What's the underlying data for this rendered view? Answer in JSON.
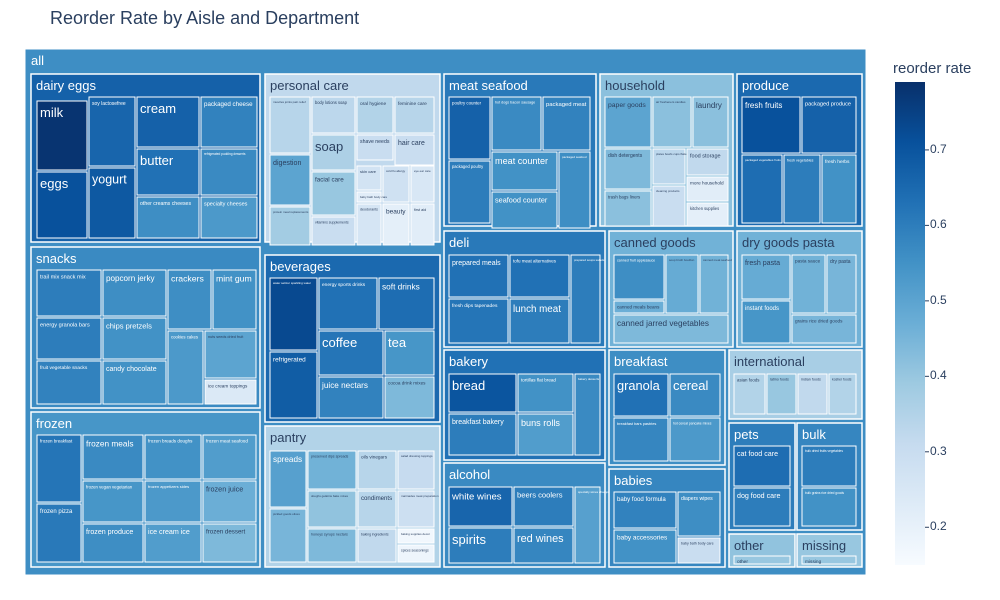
{
  "chart_data": {
    "type": "treemap",
    "title": "Reorder Rate by Aisle and Department",
    "root_label": "all",
    "root_rate": 0.56,
    "colorbar": {
      "title": "reorder rate",
      "range": [
        0.15,
        0.79
      ],
      "ticks": [
        0.2,
        0.3,
        0.4,
        0.5,
        0.6,
        0.7
      ],
      "colorscale": [
        "#f7fbff",
        "#deebf7",
        "#c6dbef",
        "#9ecae1",
        "#6baed6",
        "#4292c6",
        "#2171b5",
        "#08519c",
        "#08306b"
      ]
    },
    "departments": [
      {
        "name": "dairy eggs",
        "rate": 0.67,
        "aisles": [
          {
            "name": "milk",
            "rate": 0.78
          },
          {
            "name": "eggs",
            "rate": 0.71
          },
          {
            "name": "soy lactosefree",
            "rate": 0.66
          },
          {
            "name": "yogurt",
            "rate": 0.69
          },
          {
            "name": "cream",
            "rate": 0.67
          },
          {
            "name": "butter",
            "rate": 0.63
          },
          {
            "name": "packaged cheese",
            "rate": 0.59
          },
          {
            "name": "refrigerated pudding desserts",
            "rate": 0.57
          },
          {
            "name": "other creams cheeses",
            "rate": 0.56
          },
          {
            "name": "specialty cheeses",
            "rate": 0.53
          }
        ]
      },
      {
        "name": "personal care",
        "rate": 0.32,
        "aisles": [
          {
            "name": "facial care",
            "rate": 0.4
          },
          {
            "name": "digestion",
            "rate": 0.5
          },
          {
            "name": "body lotions soap",
            "rate": 0.33
          },
          {
            "name": "oral hygiene",
            "rate": 0.35
          },
          {
            "name": "feminine care",
            "rate": 0.34
          },
          {
            "name": "soap",
            "rate": 0.36
          },
          {
            "name": "shave needs",
            "rate": 0.3
          },
          {
            "name": "hair care",
            "rate": 0.3
          },
          {
            "name": "vitamins supplements",
            "rate": 0.3
          },
          {
            "name": "skin care",
            "rate": 0.27
          },
          {
            "name": "deodorants",
            "rate": 0.26
          },
          {
            "name": "beauty",
            "rate": 0.21
          },
          {
            "name": "first aid",
            "rate": 0.22
          },
          {
            "name": "cold flu allergy",
            "rate": 0.28
          },
          {
            "name": "eye ear care",
            "rate": 0.25
          },
          {
            "name": "muscles joints pain relief",
            "rate": 0.34
          },
          {
            "name": "protein meal replacements",
            "rate": 0.38
          },
          {
            "name": "baby bath body care",
            "rate": 0.22
          }
        ]
      },
      {
        "name": "meat seafood",
        "rate": 0.61,
        "aisles": [
          {
            "name": "poultry counter",
            "rate": 0.67
          },
          {
            "name": "hot dogs bacon sausage",
            "rate": 0.57
          },
          {
            "name": "packaged meat",
            "rate": 0.59
          },
          {
            "name": "meat counter",
            "rate": 0.55
          },
          {
            "name": "seafood counter",
            "rate": 0.55
          },
          {
            "name": "packaged seafood",
            "rate": 0.56
          },
          {
            "name": "packaged poultry",
            "rate": 0.6
          }
        ]
      },
      {
        "name": "household",
        "rate": 0.42,
        "aisles": [
          {
            "name": "paper goods",
            "rate": 0.5
          },
          {
            "name": "air fresheners candles",
            "rate": 0.42
          },
          {
            "name": "laundry",
            "rate": 0.42
          },
          {
            "name": "dish detergents",
            "rate": 0.44
          },
          {
            "name": "plates bowls cups flatware",
            "rate": 0.33
          },
          {
            "name": "food storage",
            "rate": 0.32
          },
          {
            "name": "trash bags liners",
            "rate": 0.42
          },
          {
            "name": "cleaning products",
            "rate": 0.3
          },
          {
            "name": "more household",
            "rate": 0.22
          },
          {
            "name": "kitchen supplies",
            "rate": 0.21
          }
        ]
      },
      {
        "name": "produce",
        "rate": 0.65,
        "aisles": [
          {
            "name": "fresh fruits",
            "rate": 0.71
          },
          {
            "name": "packaged produce",
            "rate": 0.67
          },
          {
            "name": "packaged vegetables fruits",
            "rate": 0.64
          },
          {
            "name": "fresh vegetables",
            "rate": 0.6
          },
          {
            "name": "fresh herbs",
            "rate": 0.55
          }
        ]
      },
      {
        "name": "snacks",
        "rate": 0.57,
        "aisles": [
          {
            "name": "trail mix snack mix",
            "rate": 0.6
          },
          {
            "name": "popcorn jerky",
            "rate": 0.56
          },
          {
            "name": "crackers",
            "rate": 0.56
          },
          {
            "name": "mint gum",
            "rate": 0.55
          },
          {
            "name": "energy granola bars",
            "rate": 0.6
          },
          {
            "name": "chips pretzels",
            "rate": 0.55
          },
          {
            "name": "cookies cakes",
            "rate": 0.53
          },
          {
            "name": "nuts seeds dried fruit",
            "rate": 0.5
          },
          {
            "name": "fruit vegetable snacks",
            "rate": 0.59
          },
          {
            "name": "candy chocolate",
            "rate": 0.55
          },
          {
            "name": "ice cream toppings",
            "rate": 0.24
          }
        ]
      },
      {
        "name": "beverages",
        "rate": 0.65,
        "aisles": [
          {
            "name": "water seltzer sparkling water",
            "rate": 0.73
          },
          {
            "name": "energy sports drinks",
            "rate": 0.63
          },
          {
            "name": "soft drinks",
            "rate": 0.64
          },
          {
            "name": "refrigerated",
            "rate": 0.68
          },
          {
            "name": "coffee",
            "rate": 0.62
          },
          {
            "name": "tea",
            "rate": 0.54
          },
          {
            "name": "juice nectars",
            "rate": 0.59
          },
          {
            "name": "cocoa drink mixes",
            "rate": 0.44
          }
        ]
      },
      {
        "name": "deli",
        "rate": 0.61,
        "aisles": [
          {
            "name": "prepared meals",
            "rate": 0.63
          },
          {
            "name": "tofu meat alternatives",
            "rate": 0.63
          },
          {
            "name": "prepared soups salads",
            "rate": 0.6
          },
          {
            "name": "fresh dips tapenades",
            "rate": 0.62
          },
          {
            "name": "lunch meat",
            "rate": 0.6
          }
        ]
      },
      {
        "name": "canned goods",
        "rate": 0.46,
        "aisles": [
          {
            "name": "canned fruit applesauce",
            "rate": 0.56
          },
          {
            "name": "soup broth bouillon",
            "rate": 0.48
          },
          {
            "name": "canned meat seafood",
            "rate": 0.46
          },
          {
            "name": "canned meals beans",
            "rate": 0.47
          },
          {
            "name": "canned jarred vegetables",
            "rate": 0.44
          }
        ]
      },
      {
        "name": "dry goods pasta",
        "rate": 0.46,
        "aisles": [
          {
            "name": "fresh pasta",
            "rate": 0.48
          },
          {
            "name": "pasta sauce",
            "rate": 0.46
          },
          {
            "name": "dry pasta",
            "rate": 0.45
          },
          {
            "name": "instant foods",
            "rate": 0.54
          },
          {
            "name": "grains rice dried goods",
            "rate": 0.45
          }
        ]
      },
      {
        "name": "frozen",
        "rate": 0.54,
        "aisles": [
          {
            "name": "frozen breakfast",
            "rate": 0.62
          },
          {
            "name": "frozen meals",
            "rate": 0.57
          },
          {
            "name": "frozen breads doughs",
            "rate": 0.55
          },
          {
            "name": "frozen meat seafood",
            "rate": 0.52
          },
          {
            "name": "frozen pizza",
            "rate": 0.61
          },
          {
            "name": "frozen vegan vegetarian",
            "rate": 0.54
          },
          {
            "name": "frozen appetizers sides",
            "rate": 0.53
          },
          {
            "name": "frozen juice",
            "rate": 0.47
          },
          {
            "name": "frozen produce",
            "rate": 0.56
          },
          {
            "name": "ice cream ice",
            "rate": 0.52
          },
          {
            "name": "frozen dessert",
            "rate": 0.44
          }
        ]
      },
      {
        "name": "pantry",
        "rate": 0.35,
        "aisles": [
          {
            "name": "spreads",
            "rate": 0.51
          },
          {
            "name": "preserved dips spreads",
            "rate": 0.46
          },
          {
            "name": "oils vinegars",
            "rate": 0.34
          },
          {
            "name": "salad dressing toppings",
            "rate": 0.31
          },
          {
            "name": "condiments",
            "rate": 0.34
          },
          {
            "name": "baking ingredients",
            "rate": 0.32
          },
          {
            "name": "honeys syrups nectars",
            "rate": 0.44
          },
          {
            "name": "doughs gelatins bake mixes",
            "rate": 0.41
          },
          {
            "name": "marinades meat preparation",
            "rate": 0.29
          },
          {
            "name": "spices seasonings",
            "rate": 0.18
          },
          {
            "name": "baking supplies decor",
            "rate": 0.17
          },
          {
            "name": "pickled goods olives",
            "rate": 0.45
          }
        ]
      },
      {
        "name": "bakery",
        "rate": 0.63,
        "aisles": [
          {
            "name": "bread",
            "rate": 0.7
          },
          {
            "name": "tortillas flat bread",
            "rate": 0.55
          },
          {
            "name": "breakfast bakery",
            "rate": 0.6
          },
          {
            "name": "buns rolls",
            "rate": 0.52
          },
          {
            "name": "bakery desserts",
            "rate": 0.57
          }
        ]
      },
      {
        "name": "breakfast",
        "rate": 0.56,
        "aisles": [
          {
            "name": "granola",
            "rate": 0.63
          },
          {
            "name": "cereal",
            "rate": 0.57
          },
          {
            "name": "breakfast bars pastries",
            "rate": 0.58
          },
          {
            "name": "hot cereal pancake mixes",
            "rate": 0.53
          }
        ]
      },
      {
        "name": "international",
        "rate": 0.37,
        "aisles": [
          {
            "name": "asian foods",
            "rate": 0.35
          },
          {
            "name": "latino foods",
            "rate": 0.4
          },
          {
            "name": "indian foods",
            "rate": 0.32
          },
          {
            "name": "kosher foods",
            "rate": 0.35
          },
          {
            "name": "italian foods",
            "rate": 0.38
          }
        ]
      },
      {
        "name": "alcohol",
        "rate": 0.57,
        "aisles": [
          {
            "name": "white wines",
            "rate": 0.66
          },
          {
            "name": "beers coolers",
            "rate": 0.6
          },
          {
            "name": "spirits",
            "rate": 0.6
          },
          {
            "name": "red wines",
            "rate": 0.58
          },
          {
            "name": "specialty wines champagnes",
            "rate": 0.51
          }
        ]
      },
      {
        "name": "babies",
        "rate": 0.58,
        "aisles": [
          {
            "name": "baby food formula",
            "rate": 0.59
          },
          {
            "name": "diapers wipes",
            "rate": 0.56
          },
          {
            "name": "baby accessories",
            "rate": 0.55
          },
          {
            "name": "baby bath body care",
            "rate": 0.3
          }
        ]
      },
      {
        "name": "pets",
        "rate": 0.6,
        "aisles": [
          {
            "name": "cat food care",
            "rate": 0.64
          },
          {
            "name": "dog food care",
            "rate": 0.6
          }
        ]
      },
      {
        "name": "bulk",
        "rate": 0.58,
        "aisles": [
          {
            "name": "bulk dried fruits vegetables",
            "rate": 0.6
          },
          {
            "name": "bulk grains rice dried goods",
            "rate": 0.55
          }
        ]
      },
      {
        "name": "other",
        "rate": 0.41,
        "aisles": [
          {
            "name": "other",
            "rate": 0.4
          }
        ]
      },
      {
        "name": "missing",
        "rate": 0.4,
        "aisles": [
          {
            "name": "missing",
            "rate": 0.4
          }
        ]
      }
    ]
  }
}
